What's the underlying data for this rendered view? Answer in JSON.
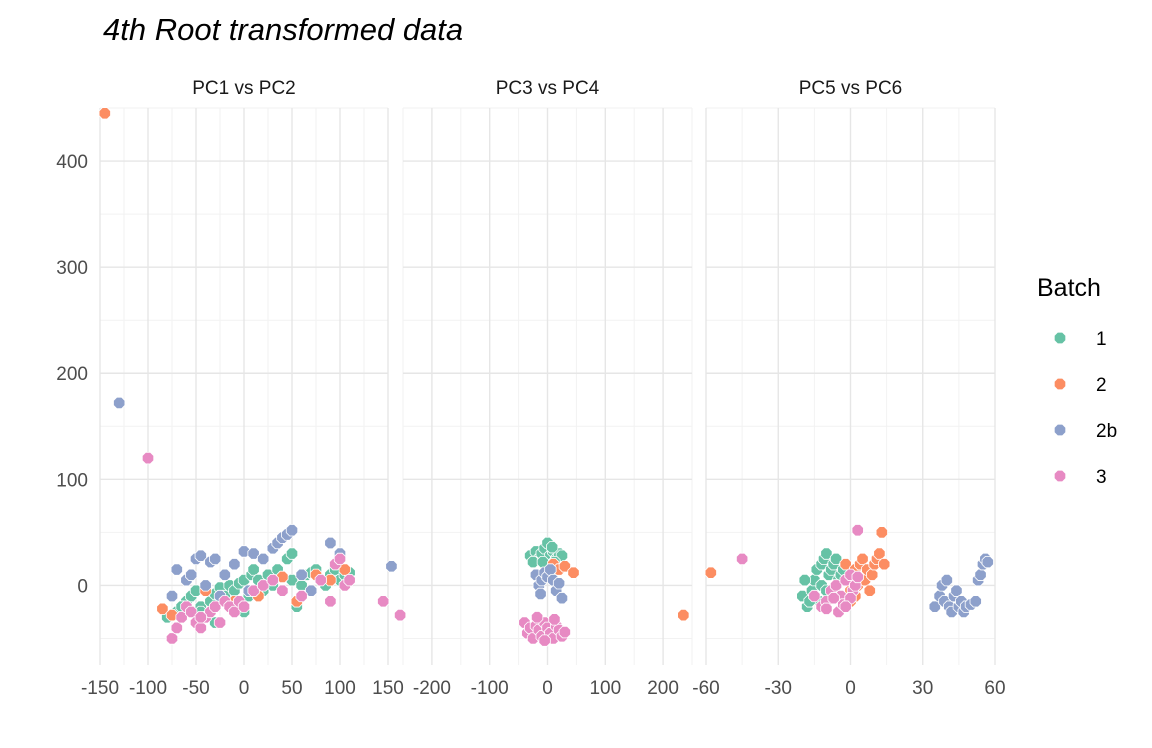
{
  "chart_data": {
    "type": "scatter",
    "title": "4th Root transformed data",
    "y_ticks": [
      0,
      100,
      200,
      300,
      400
    ],
    "ylim": [
      -75,
      450
    ],
    "grid": true,
    "legend": {
      "title": "Batch",
      "position": "right",
      "entries": [
        {
          "label": "1",
          "color": "#66c2a5"
        },
        {
          "label": "2",
          "color": "#fc8d62"
        },
        {
          "label": "2b",
          "color": "#8da0cb"
        },
        {
          "label": "3",
          "color": "#e78ac3"
        }
      ]
    },
    "panels": [
      {
        "title": "PC1 vs PC2",
        "xlim": [
          -150,
          150
        ],
        "x_ticks": [
          -150,
          -100,
          -50,
          0,
          50,
          100,
          150
        ],
        "series": [
          {
            "name": "1",
            "points": [
              [
                -80,
                -30
              ],
              [
                -70,
                -25
              ],
              [
                -60,
                -15
              ],
              [
                -55,
                -10
              ],
              [
                -50,
                -5
              ],
              [
                -45,
                -20
              ],
              [
                -40,
                -30
              ],
              [
                -35,
                -15
              ],
              [
                -30,
                -8
              ],
              [
                -25,
                -2
              ],
              [
                -20,
                -10
              ],
              [
                -15,
                0
              ],
              [
                -10,
                -5
              ],
              [
                -5,
                2
              ],
              [
                0,
                5
              ],
              [
                5,
                -10
              ],
              [
                8,
                10
              ],
              [
                10,
                15
              ],
              [
                15,
                5
              ],
              [
                20,
                -5
              ],
              [
                25,
                10
              ],
              [
                30,
                0
              ],
              [
                35,
                15
              ],
              [
                45,
                25
              ],
              [
                50,
                5
              ],
              [
                55,
                -20
              ],
              [
                60,
                0
              ],
              [
                65,
                10
              ],
              [
                70,
                12
              ],
              [
                75,
                15
              ],
              [
                80,
                5
              ],
              [
                85,
                0
              ],
              [
                90,
                10
              ],
              [
                95,
                15
              ],
              [
                100,
                5
              ],
              [
                105,
                10
              ],
              [
                110,
                12
              ],
              [
                50,
                30
              ],
              [
                -45,
                -25
              ],
              [
                -65,
                -20
              ],
              [
                0,
                -25
              ],
              [
                -30,
                -35
              ]
            ]
          },
          {
            "name": "2",
            "points": [
              [
                -145,
                445
              ],
              [
                -85,
                -22
              ],
              [
                -75,
                -28
              ],
              [
                -40,
                -5
              ],
              [
                -10,
                -15
              ],
              [
                15,
                -10
              ],
              [
                40,
                8
              ],
              [
                55,
                -15
              ],
              [
                75,
                10
              ],
              [
                90,
                5
              ],
              [
                100,
                25
              ],
              [
                105,
                15
              ]
            ]
          },
          {
            "name": "2b",
            "points": [
              [
                -130,
                172
              ],
              [
                -75,
                -10
              ],
              [
                -70,
                15
              ],
              [
                -60,
                5
              ],
              [
                -55,
                10
              ],
              [
                -50,
                25
              ],
              [
                -45,
                28
              ],
              [
                -40,
                0
              ],
              [
                -35,
                22
              ],
              [
                -30,
                25
              ],
              [
                -20,
                10
              ],
              [
                -10,
                20
              ],
              [
                0,
                32
              ],
              [
                10,
                30
              ],
              [
                20,
                25
              ],
              [
                30,
                35
              ],
              [
                35,
                40
              ],
              [
                40,
                45
              ],
              [
                45,
                48
              ],
              [
                50,
                52
              ],
              [
                60,
                10
              ],
              [
                70,
                -5
              ],
              [
                90,
                40
              ],
              [
                100,
                30
              ],
              [
                -25,
                -10
              ],
              [
                5,
                -5
              ]
            ]
          },
          {
            "name": "3",
            "points": [
              [
                -100,
                120
              ],
              [
                -75,
                -50
              ],
              [
                -70,
                -40
              ],
              [
                -65,
                -30
              ],
              [
                -60,
                -20
              ],
              [
                -55,
                -25
              ],
              [
                -50,
                -35
              ],
              [
                -45,
                -40
              ],
              [
                -40,
                -30
              ],
              [
                -35,
                -25
              ],
              [
                -30,
                -20
              ],
              [
                -25,
                -35
              ],
              [
                -20,
                -15
              ],
              [
                -15,
                -20
              ],
              [
                -10,
                -25
              ],
              [
                -5,
                -15
              ],
              [
                0,
                -20
              ],
              [
                10,
                -5
              ],
              [
                20,
                0
              ],
              [
                30,
                5
              ],
              [
                40,
                -5
              ],
              [
                60,
                -10
              ],
              [
                80,
                5
              ],
              [
                90,
                -15
              ],
              [
                95,
                20
              ],
              [
                100,
                25
              ],
              [
                105,
                0
              ],
              [
                110,
                5
              ],
              [
                145,
                -15
              ],
              [
                -45,
                -30
              ]
            ]
          }
        ]
      },
      {
        "title": "PC3 vs PC4",
        "xlim": [
          -250,
          250
        ],
        "x_ticks": [
          -200,
          -100,
          0,
          100,
          200
        ],
        "series": [
          {
            "name": "1",
            "points": [
              [
                -30,
                28
              ],
              [
                -20,
                32
              ],
              [
                -15,
                25
              ],
              [
                -10,
                30
              ],
              [
                -5,
                35
              ],
              [
                0,
                40
              ],
              [
                5,
                28
              ],
              [
                10,
                32
              ],
              [
                15,
                25
              ],
              [
                20,
                30
              ],
              [
                25,
                28
              ],
              [
                -25,
                22
              ],
              [
                8,
                36
              ],
              [
                -8,
                22
              ],
              [
                12,
                22
              ]
            ]
          },
          {
            "name": "2",
            "points": [
              [
                10,
                20
              ],
              [
                20,
                15
              ],
              [
                30,
                18
              ],
              [
                45,
                12
              ],
              [
                235,
                -28
              ]
            ]
          },
          {
            "name": "2b",
            "points": [
              [
                -270,
                18
              ],
              [
                -20,
                10
              ],
              [
                -15,
                0
              ],
              [
                -10,
                5
              ],
              [
                -5,
                12
              ],
              [
                0,
                8
              ],
              [
                5,
                15
              ],
              [
                10,
                5
              ],
              [
                15,
                -5
              ],
              [
                20,
                2
              ],
              [
                -12,
                -8
              ],
              [
                25,
                -12
              ]
            ]
          },
          {
            "name": "3",
            "points": [
              [
                -255,
                -28
              ],
              [
                -40,
                -35
              ],
              [
                -35,
                -45
              ],
              [
                -30,
                -40
              ],
              [
                -25,
                -50
              ],
              [
                -20,
                -38
              ],
              [
                -15,
                -42
              ],
              [
                -10,
                -48
              ],
              [
                -5,
                -35
              ],
              [
                0,
                -40
              ],
              [
                5,
                -45
              ],
              [
                10,
                -50
              ],
              [
                15,
                -38
              ],
              [
                20,
                -42
              ],
              [
                25,
                -48
              ],
              [
                30,
                -44
              ],
              [
                -18,
                -30
              ],
              [
                -5,
                -52
              ],
              [
                12,
                -32
              ]
            ]
          }
        ]
      },
      {
        "title": "PC5 vs PC6",
        "xlim": [
          -60,
          60
        ],
        "x_ticks": [
          -60,
          -30,
          0,
          30,
          60
        ],
        "series": [
          {
            "name": "1",
            "points": [
              [
                -20,
                -10
              ],
              [
                -18,
                -20
              ],
              [
                -16,
                -5
              ],
              [
                -15,
                5
              ],
              [
                -14,
                15
              ],
              [
                -13,
                -15
              ],
              [
                -12,
                20
              ],
              [
                -11,
                25
              ],
              [
                -10,
                30
              ],
              [
                -9,
                10
              ],
              [
                -8,
                15
              ],
              [
                -7,
                20
              ],
              [
                -6,
                25
              ],
              [
                -5,
                5
              ],
              [
                -4,
                10
              ],
              [
                -3,
                15
              ],
              [
                -12,
                0
              ],
              [
                -17,
                -15
              ],
              [
                -10,
                -5
              ],
              [
                -19,
                5
              ]
            ]
          },
          {
            "name": "2",
            "points": [
              [
                -58,
                12
              ],
              [
                -2,
                20
              ],
              [
                0,
                -5
              ],
              [
                1,
                10
              ],
              [
                2,
                15
              ],
              [
                3,
                0
              ],
              [
                4,
                20
              ],
              [
                5,
                25
              ],
              [
                6,
                5
              ],
              [
                7,
                15
              ],
              [
                8,
                -5
              ],
              [
                9,
                10
              ],
              [
                10,
                20
              ],
              [
                11,
                25
              ],
              [
                12,
                30
              ],
              [
                13,
                50
              ],
              [
                14,
                20
              ],
              [
                0,
                -15
              ],
              [
                2,
                -10
              ]
            ]
          },
          {
            "name": "2b",
            "points": [
              [
                35,
                -20
              ],
              [
                37,
                -10
              ],
              [
                38,
                0
              ],
              [
                39,
                -15
              ],
              [
                40,
                5
              ],
              [
                41,
                -20
              ],
              [
                42,
                -25
              ],
              [
                43,
                -10
              ],
              [
                44,
                -5
              ],
              [
                45,
                -20
              ],
              [
                46,
                -15
              ],
              [
                47,
                -25
              ],
              [
                48,
                -20
              ],
              [
                50,
                -18
              ],
              [
                52,
                -15
              ],
              [
                53,
                5
              ],
              [
                54,
                10
              ],
              [
                55,
                20
              ],
              [
                56,
                25
              ],
              [
                57,
                22
              ]
            ]
          },
          {
            "name": "3",
            "points": [
              [
                -45,
                25
              ],
              [
                -15,
                -10
              ],
              [
                -12,
                -20
              ],
              [
                -10,
                -15
              ],
              [
                -8,
                -5
              ],
              [
                -6,
                0
              ],
              [
                -4,
                -10
              ],
              [
                -2,
                5
              ],
              [
                0,
                10
              ],
              [
                1,
                -5
              ],
              [
                2,
                0
              ],
              [
                3,
                8
              ],
              [
                -5,
                -25
              ],
              [
                -3,
                -18
              ],
              [
                -7,
                -12
              ],
              [
                3,
                52
              ],
              [
                -10,
                -22
              ],
              [
                0,
                -12
              ],
              [
                -2,
                -20
              ]
            ]
          }
        ]
      }
    ]
  }
}
